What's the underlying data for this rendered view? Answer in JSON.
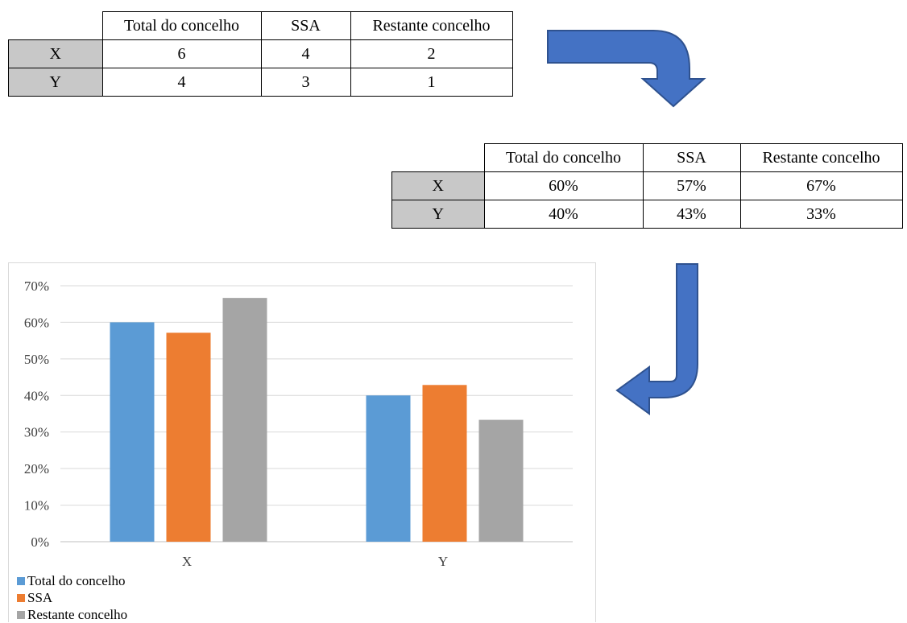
{
  "table_counts": {
    "headers": [
      "Total do concelho",
      "SSA",
      "Restante concelho"
    ],
    "rows": [
      {
        "label": "X",
        "values": [
          "6",
          "4",
          "2"
        ]
      },
      {
        "label": "Y",
        "values": [
          "4",
          "3",
          "1"
        ]
      }
    ]
  },
  "table_percent": {
    "headers": [
      "Total do concelho",
      "SSA",
      "Restante concelho"
    ],
    "rows": [
      {
        "label": "X",
        "values": [
          "60%",
          "57%",
          "67%"
        ]
      },
      {
        "label": "Y",
        "values": [
          "40%",
          "43%",
          "33%"
        ]
      }
    ]
  },
  "arrow_color": "#4472C4",
  "chart_data": {
    "type": "bar",
    "categories": [
      "X",
      "Y"
    ],
    "series": [
      {
        "name": "Total do concelho",
        "values": [
          0.6,
          0.4
        ],
        "color": "#5B9BD5"
      },
      {
        "name": "SSA",
        "values": [
          0.5714,
          0.4286
        ],
        "color": "#ED7D31"
      },
      {
        "name": "Restante concelho",
        "values": [
          0.6667,
          0.3333
        ],
        "color": "#A5A5A5"
      }
    ],
    "ylim": [
      0,
      0.7
    ],
    "yticks": [
      "0%",
      "10%",
      "20%",
      "30%",
      "40%",
      "50%",
      "60%",
      "70%"
    ],
    "grid": true,
    "legend_position": "bottom-left"
  }
}
